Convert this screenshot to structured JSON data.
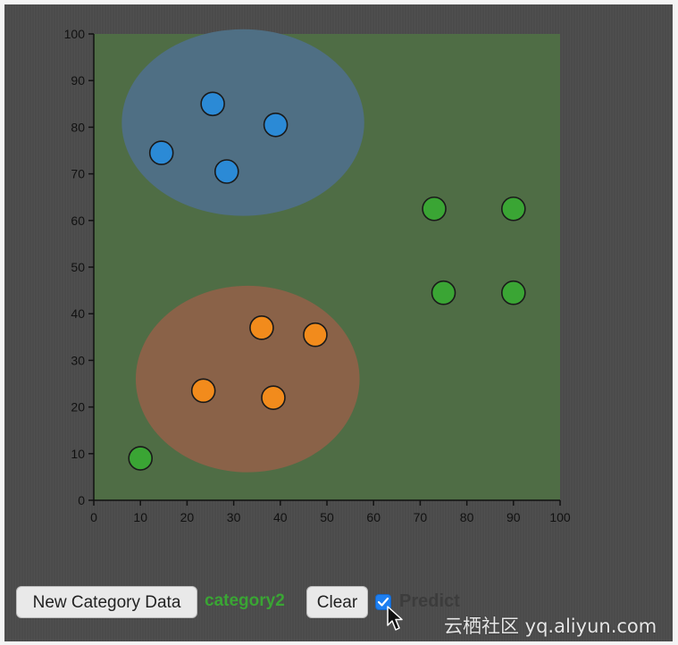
{
  "controls": {
    "new_category_label": "New Category Data",
    "current_category": "category2",
    "clear_label": "Clear",
    "predict_label": "Predict",
    "predict_checked": true
  },
  "watermark_text": "云栖社区 yq.aliyun.com",
  "colors": {
    "background": "#4b4b4b",
    "category1": "#2b8ad6",
    "category2": "#3aa534",
    "category3": "#f28b1c",
    "region_category1": "#4f6f84",
    "region_category2": "#4f6d45",
    "region_category3": "#8a6248"
  },
  "chart_data": {
    "type": "scatter",
    "xlim": [
      0,
      100
    ],
    "ylim": [
      0,
      100
    ],
    "x_ticks": [
      0,
      10,
      20,
      30,
      40,
      50,
      60,
      70,
      80,
      90,
      100
    ],
    "y_ticks": [
      0,
      10,
      20,
      30,
      40,
      50,
      60,
      70,
      80,
      90,
      100
    ],
    "grid": false,
    "background_region": "category2",
    "regions": [
      {
        "category": "category1",
        "cx": 32,
        "cy": 81,
        "rx": 26,
        "ry": 20
      },
      {
        "category": "category3",
        "cx": 33,
        "cy": 26,
        "rx": 24,
        "ry": 20
      }
    ],
    "series": [
      {
        "category": "category1",
        "points": [
          [
            14.5,
            74.5
          ],
          [
            25.5,
            85
          ],
          [
            28.5,
            70.5
          ],
          [
            39,
            80.5
          ]
        ]
      },
      {
        "category": "category2",
        "points": [
          [
            73,
            62.5
          ],
          [
            90,
            62.5
          ],
          [
            75,
            44.5
          ],
          [
            90,
            44.5
          ],
          [
            10,
            9
          ]
        ]
      },
      {
        "category": "category3",
        "points": [
          [
            36,
            37
          ],
          [
            47.5,
            35.5
          ],
          [
            23.5,
            23.5
          ],
          [
            38.5,
            22
          ]
        ]
      }
    ]
  }
}
